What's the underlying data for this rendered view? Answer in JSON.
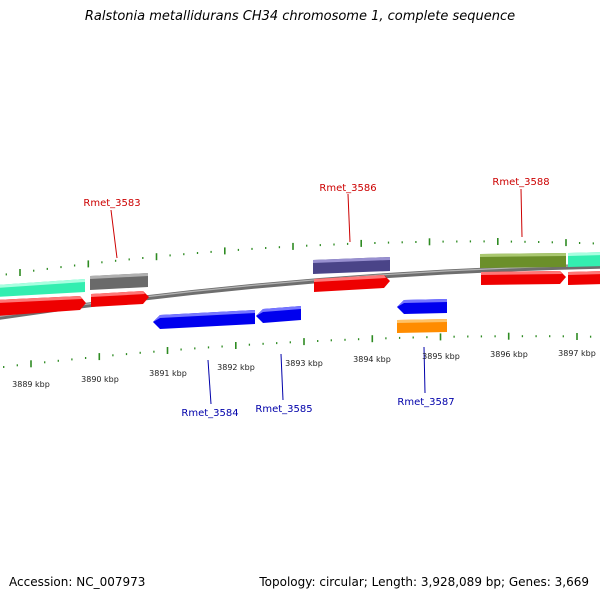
{
  "title": "Ralstonia metallidurans CH34 chromosome 1, complete sequence",
  "footer": {
    "accession": "Accession: NC_007973",
    "summary": "Topology: circular; Length: 3,928,089 bp; Genes: 3,669"
  },
  "scale_labels": [
    "3889 kbp",
    "3890 kbp",
    "3891 kbp",
    "3892 kbp",
    "3893 kbp",
    "3894 kbp",
    "3895 kbp",
    "3896 kbp",
    "3897 kbp"
  ],
  "genes_forward": [
    {
      "name": "Rmet_3583",
      "color": "#cc0000"
    },
    {
      "name": "Rmet_3586",
      "color": "#cc0000"
    },
    {
      "name": "Rmet_3588",
      "color": "#cc0000"
    }
  ],
  "genes_reverse": [
    {
      "name": "Rmet_3584",
      "color": "#0000aa"
    },
    {
      "name": "Rmet_3585",
      "color": "#0000aa"
    },
    {
      "name": "Rmet_3587",
      "color": "#0000aa"
    }
  ],
  "colors": {
    "cds": "#ff0000",
    "reverse_cds": "#0000ee",
    "tick": "#2e8b22",
    "backbone": "#888888",
    "feature_teal": "#33eeb0",
    "feature_gray": "#6a6a6a",
    "feature_purple": "#4a4488",
    "feature_olive": "#6b8f2a",
    "feature_orange": "#ff8c00"
  }
}
